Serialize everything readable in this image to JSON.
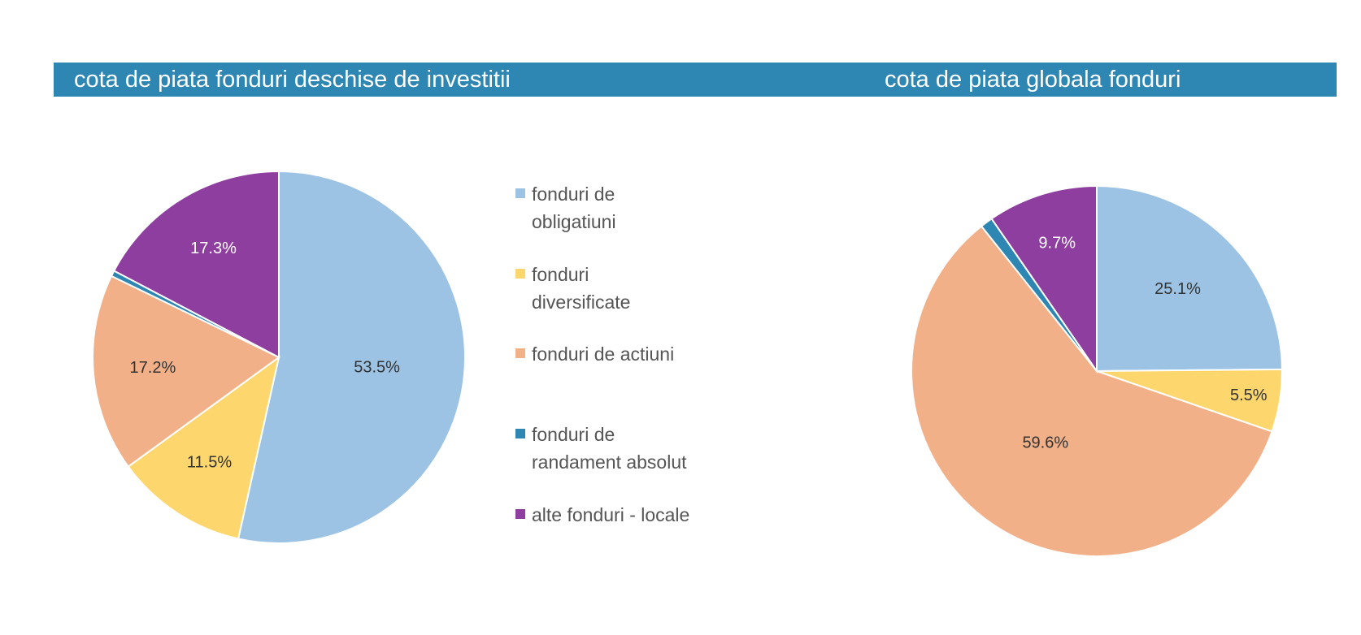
{
  "titles": {
    "left": "cota de piata fonduri deschise de investitii",
    "right": "cota de piata globala fonduri"
  },
  "colors": {
    "banner": "#2e86b2",
    "fonduri de obligatiuni": "#9dc3e4",
    "fonduri diversificate": "#fdd76e",
    "fonduri de actiuni": "#f2b088",
    "fonduri de randament absolut": "#2e86b2",
    "alte fonduri - locale": "#8e3e9e"
  },
  "legend": [
    {
      "label": "fonduri de obligatiuni",
      "lines": [
        "fonduri de",
        "obligatiuni"
      ],
      "color": "#9dc3e4"
    },
    {
      "label": "fonduri diversificate",
      "lines": [
        "fonduri",
        "diversificate"
      ],
      "color": "#fdd76e"
    },
    {
      "label": "fonduri de actiuni",
      "lines": [
        "fonduri de actiuni"
      ],
      "color": "#f2b088"
    },
    {
      "label": "fonduri de randament absolut",
      "lines": [
        "fonduri de",
        "randament absolut"
      ],
      "color": "#2e86b2"
    },
    {
      "label": "alte fonduri - locale",
      "lines": [
        "alte fonduri - locale"
      ],
      "color": "#8e3e9e"
    }
  ],
  "chart_data": [
    {
      "type": "pie",
      "title": "cota de piata fonduri deschise de investitii",
      "categories": [
        "fonduri de obligatiuni",
        "fonduri diversificate",
        "fonduri de actiuni",
        "fonduri de randament absolut",
        "alte fonduri - locale"
      ],
      "values": [
        53.5,
        11.5,
        17.2,
        0.5,
        17.3
      ],
      "data_labels": [
        "53.5%",
        "11.5%",
        "17.2%",
        "",
        "17.3%"
      ],
      "colors": [
        "#9dc3e4",
        "#fdd76e",
        "#f2b088",
        "#2e86b2",
        "#8e3e9e"
      ],
      "label_colors": [
        "#333333",
        "#333333",
        "#333333",
        "#333333",
        "#ffffff"
      ],
      "start_angle_deg": 0,
      "direction": "clockwise",
      "legend_position": "right"
    },
    {
      "type": "pie",
      "title": "cota de piata globala fonduri",
      "categories": [
        "fonduri de obligatiuni",
        "fonduri diversificate",
        "fonduri de actiuni",
        "fonduri de randament absolut",
        "alte fonduri - locale"
      ],
      "values": [
        25.1,
        5.5,
        59.6,
        1.1,
        9.7
      ],
      "data_labels": [
        "25.1%",
        "5.5%",
        "59.6%",
        "",
        "9.7%"
      ],
      "colors": [
        "#9dc3e4",
        "#fdd76e",
        "#f2b088",
        "#2e86b2",
        "#8e3e9e"
      ],
      "label_colors": [
        "#333333",
        "#333333",
        "#333333",
        "#333333",
        "#ffffff"
      ],
      "start_angle_deg": 0,
      "direction": "clockwise",
      "legend_position": "none"
    }
  ]
}
